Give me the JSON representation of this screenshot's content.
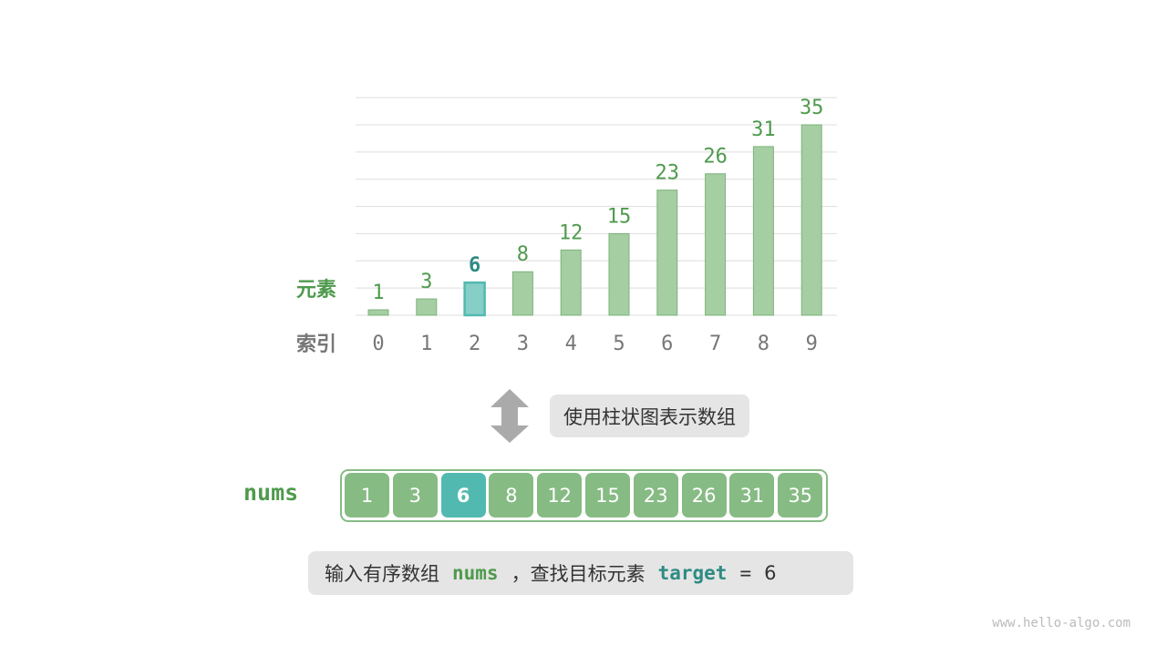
{
  "chart_data": {
    "type": "bar",
    "categories": [
      "0",
      "1",
      "2",
      "3",
      "4",
      "5",
      "6",
      "7",
      "8",
      "9"
    ],
    "values": [
      1,
      3,
      6,
      8,
      12,
      15,
      23,
      26,
      31,
      35
    ],
    "highlight_index": 2,
    "ylim": [
      0,
      40
    ],
    "grid": true,
    "ylabel": "元素",
    "xlabel": "索引"
  },
  "arrow_caption": "使用柱状图表示数组",
  "array": {
    "name": "nums",
    "values": [
      "1",
      "3",
      "6",
      "8",
      "12",
      "15",
      "23",
      "26",
      "31",
      "35"
    ],
    "highlight_index": 2
  },
  "caption": {
    "prefix": "输入有序数组",
    "nums": "nums",
    "middle": "，查找目标元素",
    "target": "target",
    "eq": "=",
    "value": "6"
  },
  "watermark": "www.hello-algo.com",
  "colors": {
    "bar": "#a5cea3",
    "bar_stroke": "#7db37a",
    "highlight": "#52b9b0",
    "label_green": "#4f9a4d",
    "label_teal": "#2e8b83",
    "index_gray": "#777777"
  }
}
